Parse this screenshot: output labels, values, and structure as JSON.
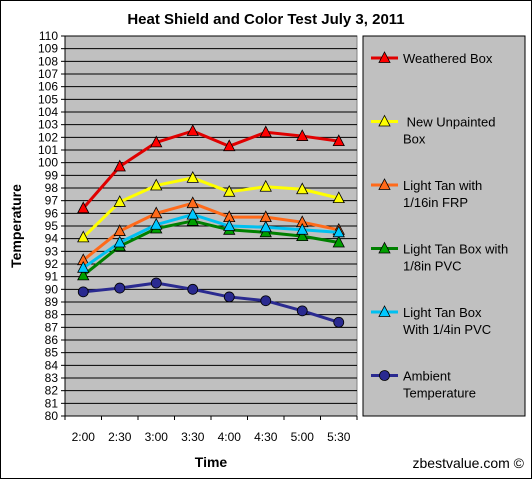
{
  "chart_data": {
    "type": "line",
    "title": "Heat Shield and Color Test July 3, 2011",
    "xlabel": "Time",
    "ylabel": "Temperature",
    "ylim": [
      80,
      110
    ],
    "y_ticks": [
      80,
      81,
      82,
      83,
      84,
      85,
      86,
      87,
      88,
      89,
      90,
      91,
      92,
      93,
      94,
      95,
      96,
      97,
      98,
      99,
      100,
      101,
      102,
      103,
      104,
      105,
      106,
      107,
      108,
      109,
      110
    ],
    "categories": [
      "2:00",
      "2:30",
      "3:00",
      "3:30",
      "4:00",
      "4:30",
      "5:00",
      "5:30"
    ],
    "grid": "horizontal",
    "legend_placement": "right",
    "plot_background": "#c0c0c0",
    "series": [
      {
        "name": "Weathered Box",
        "legend_lines": [
          "Weathered Box"
        ],
        "color": "#e00000",
        "marker": "triangle",
        "marker_fill": "#ff0000",
        "values": [
          96.4,
          99.7,
          101.6,
          102.5,
          101.3,
          102.4,
          102.1,
          101.7
        ]
      },
      {
        "name": "New Unpainted Box",
        "legend_lines": [
          " New Unpainted",
          "Box"
        ],
        "color": "#ffff00",
        "marker": "triangle",
        "marker_fill": "#ffff00",
        "values": [
          94.1,
          96.9,
          98.2,
          98.8,
          97.7,
          98.1,
          97.9,
          97.2
        ]
      },
      {
        "name": "Light Tan with 1/16in FRP",
        "legend_lines": [
          "Light Tan with",
          "1/16in FRP"
        ],
        "color": "#ff6a1a",
        "marker": "triangle",
        "marker_fill": "#ff6a1a",
        "values": [
          92.3,
          94.6,
          96.0,
          96.8,
          95.7,
          95.7,
          95.3,
          94.7
        ]
      },
      {
        "name": "Light Tan Box with 1/8in PVC",
        "legend_lines": [
          "Light Tan Box with",
          "1/8in PVC"
        ],
        "color": "#008000",
        "marker": "triangle",
        "marker_fill": "#00a000",
        "values": [
          91.1,
          93.4,
          94.8,
          95.4,
          94.7,
          94.5,
          94.2,
          93.7
        ]
      },
      {
        "name": "Light Tan Box With 1/4in PVC",
        "legend_lines": [
          "Light Tan Box",
          "With 1/4in PVC"
        ],
        "color": "#00c0f0",
        "marker": "triangle",
        "marker_fill": "#00c8ff",
        "values": [
          91.7,
          93.7,
          95.1,
          95.9,
          95.0,
          94.9,
          94.7,
          94.5
        ]
      },
      {
        "name": "Ambient Temperature",
        "legend_lines": [
          "Ambient",
          "Temperature"
        ],
        "color": "#2a2a90",
        "marker": "circle",
        "marker_fill": "#2a2a90",
        "values": [
          89.8,
          90.1,
          90.5,
          90.0,
          89.4,
          89.1,
          88.3,
          87.4
        ]
      }
    ]
  },
  "watermark": "zbestvalue.com ©"
}
